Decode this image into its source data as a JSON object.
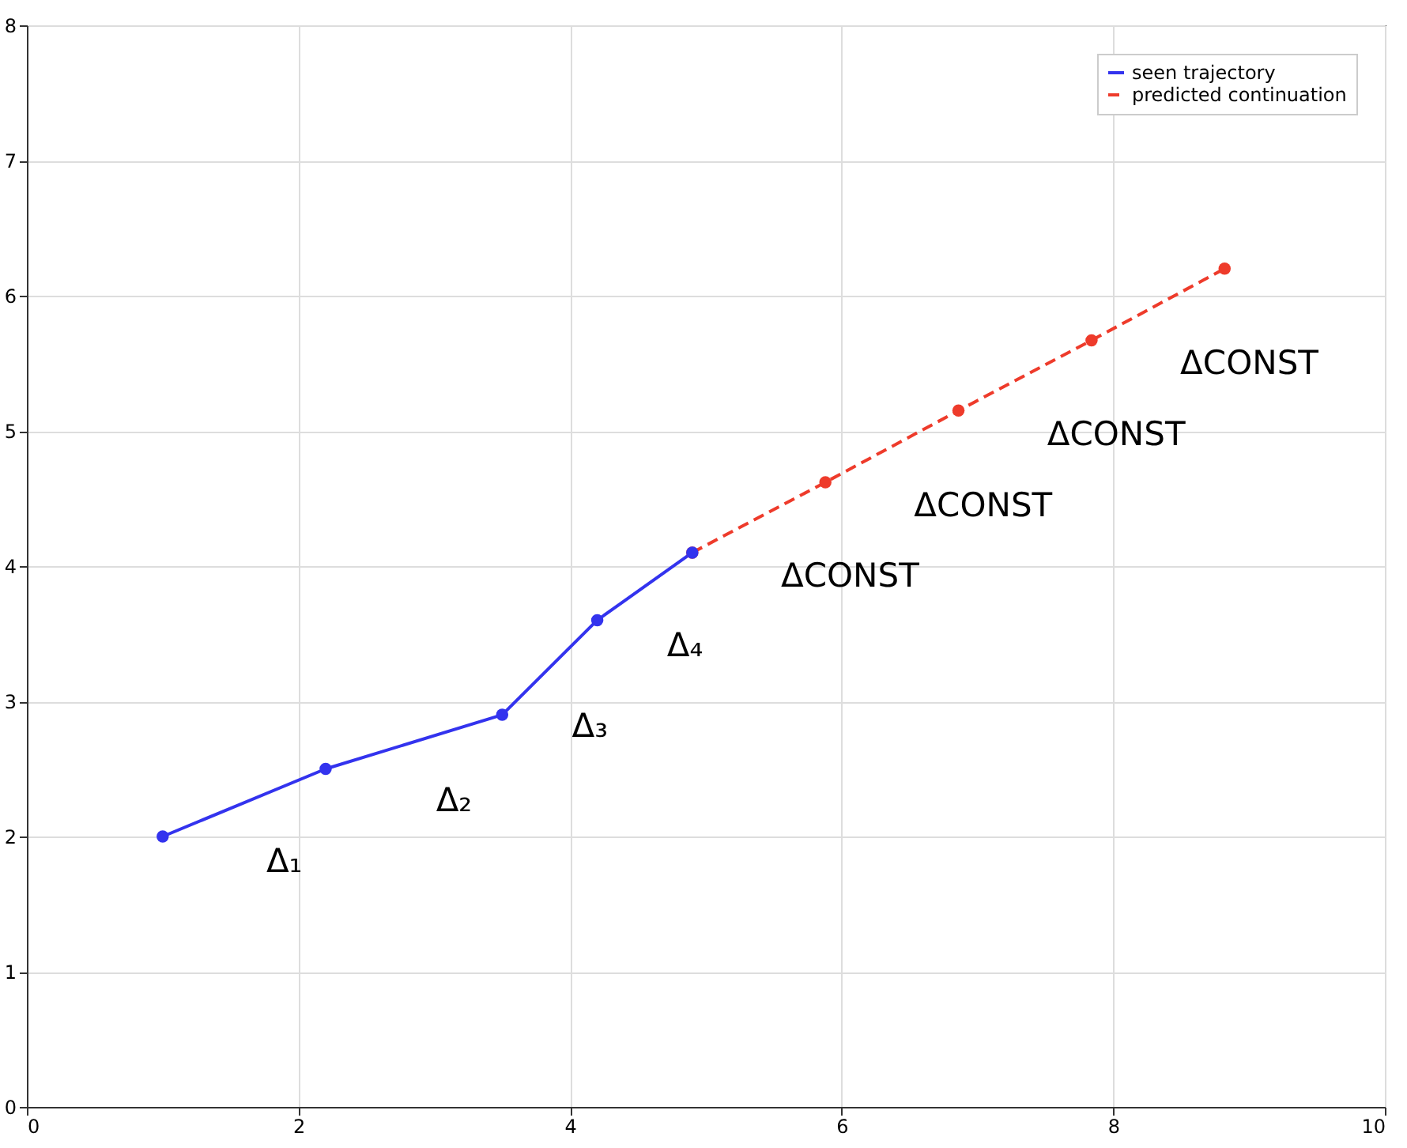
{
  "chart_data": {
    "type": "line",
    "x": [
      1.0,
      2.2,
      3.5,
      4.2,
      4.9
    ],
    "series": [
      {
        "name": "seen trajectory",
        "color": "#3333ee",
        "line_style": "solid",
        "values": [
          2.0,
          2.5,
          2.9,
          3.6,
          4.1
        ]
      },
      {
        "name": "predicted continuation",
        "color": "#ee3b2b",
        "line_style": "dashed",
        "x": [
          4.9,
          5.88,
          6.86,
          7.84,
          8.82
        ],
        "values": [
          4.1,
          4.62,
          5.15,
          5.67,
          6.2
        ]
      }
    ],
    "xlim": [
      0,
      10
    ],
    "xticks": [
      0,
      2,
      4,
      6,
      8,
      10
    ],
    "ylim": [
      0,
      8
    ],
    "yticks": [
      0,
      1,
      2,
      3,
      4,
      5,
      6,
      7,
      8
    ],
    "grid": true,
    "legend": "top right",
    "marker": "circle",
    "annotations": [
      "Δ₁",
      "Δ₂",
      "Δ₃",
      "Δ₄",
      "ΔCONST",
      "ΔCONST",
      "ΔCONST",
      "ΔCONST"
    ]
  }
}
